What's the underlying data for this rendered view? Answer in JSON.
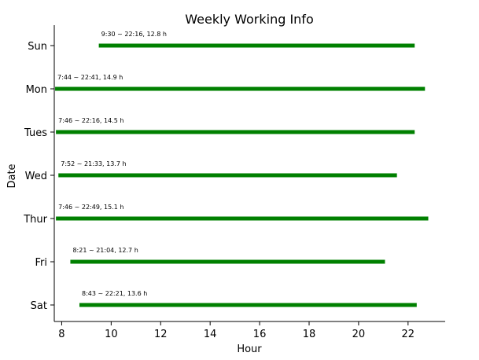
{
  "chart_data": {
    "type": "bar",
    "orientation": "horizontal-range",
    "title": "Weekly Working Info",
    "xlabel": "Hour",
    "ylabel": "Date",
    "xlim": [
      7.7,
      23.5
    ],
    "xticks": [
      8,
      10,
      12,
      14,
      16,
      18,
      20,
      22
    ],
    "grid": false,
    "bar_color": "#008000",
    "categories": [
      "Sun",
      "Mon",
      "Tues",
      "Wed",
      "Thur",
      "Fri",
      "Sat"
    ],
    "ranges": [
      {
        "day": "Sun",
        "start": 9.5,
        "end": 22.267,
        "label": "9:30 ~ 22:16, 12.8 h"
      },
      {
        "day": "Mon",
        "start": 7.733,
        "end": 22.683,
        "label": "7:44 ~ 22:41, 14.9 h"
      },
      {
        "day": "Tues",
        "start": 7.767,
        "end": 22.267,
        "label": "7:46 ~ 22:16, 14.5 h"
      },
      {
        "day": "Wed",
        "start": 7.867,
        "end": 21.55,
        "label": "7:52 ~ 21:33, 13.7 h"
      },
      {
        "day": "Thur",
        "start": 7.767,
        "end": 22.817,
        "label": "7:46 ~ 22:49, 15.1 h"
      },
      {
        "day": "Fri",
        "start": 8.35,
        "end": 21.067,
        "label": "8:21 ~ 21:04, 12.7 h"
      },
      {
        "day": "Sat",
        "start": 8.717,
        "end": 22.35,
        "label": "8:43 ~ 22:21, 13.6 h"
      }
    ]
  }
}
